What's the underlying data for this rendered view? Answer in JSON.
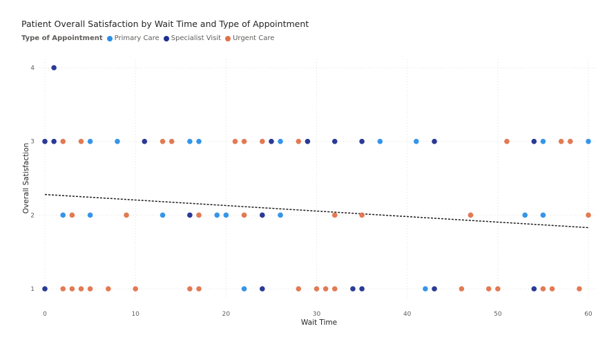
{
  "chart_data": {
    "type": "scatter",
    "title": "Patient Overall Satisfaction by Wait Time and Type of Appointment",
    "legend_title": "Type of Appointment",
    "xlabel": "Wait Time",
    "ylabel": "Overall Satisfaction",
    "xlim": [
      0,
      60
    ],
    "ylim": [
      1,
      4
    ],
    "x_ticks": [
      0,
      10,
      20,
      30,
      40,
      50,
      60
    ],
    "y_ticks": [
      1,
      2,
      3,
      4
    ],
    "grid": true,
    "legend_position": "top-left",
    "trendline": {
      "x": [
        0,
        60
      ],
      "y": [
        2.28,
        1.83
      ],
      "style": "dashed"
    },
    "series": [
      {
        "name": "Primary Care",
        "color": "#2b8fe8",
        "points": [
          [
            5,
            3
          ],
          [
            8,
            3
          ],
          [
            16,
            3
          ],
          [
            17,
            3
          ],
          [
            26,
            3
          ],
          [
            37,
            3
          ],
          [
            41,
            3
          ],
          [
            55,
            3
          ],
          [
            60,
            3
          ],
          [
            2,
            2
          ],
          [
            5,
            2
          ],
          [
            13,
            2
          ],
          [
            19,
            2
          ],
          [
            20,
            2
          ],
          [
            26,
            2
          ],
          [
            53,
            2
          ],
          [
            55,
            2
          ],
          [
            22,
            1
          ],
          [
            42,
            1
          ]
        ]
      },
      {
        "name": "Specialist Visit",
        "color": "#1f2f8f",
        "points": [
          [
            1,
            4
          ],
          [
            0,
            3
          ],
          [
            1,
            3
          ],
          [
            11,
            3
          ],
          [
            25,
            3
          ],
          [
            29,
            3
          ],
          [
            32,
            3
          ],
          [
            35,
            3
          ],
          [
            43,
            3
          ],
          [
            54,
            3
          ],
          [
            16,
            2
          ],
          [
            24,
            2
          ],
          [
            0,
            1
          ],
          [
            24,
            1
          ],
          [
            34,
            1
          ],
          [
            35,
            1
          ],
          [
            43,
            1
          ],
          [
            54,
            1
          ]
        ]
      },
      {
        "name": "Urgent Care",
        "color": "#e0734a",
        "points": [
          [
            2,
            3
          ],
          [
            4,
            3
          ],
          [
            13,
            3
          ],
          [
            14,
            3
          ],
          [
            21,
            3
          ],
          [
            22,
            3
          ],
          [
            24,
            3
          ],
          [
            28,
            3
          ],
          [
            51,
            3
          ],
          [
            57,
            3
          ],
          [
            58,
            3
          ],
          [
            3,
            2
          ],
          [
            9,
            2
          ],
          [
            17,
            2
          ],
          [
            22,
            2
          ],
          [
            32,
            2
          ],
          [
            35,
            2
          ],
          [
            47,
            2
          ],
          [
            60,
            2
          ],
          [
            2,
            1
          ],
          [
            3,
            1
          ],
          [
            4,
            1
          ],
          [
            5,
            1
          ],
          [
            7,
            1
          ],
          [
            10,
            1
          ],
          [
            16,
            1
          ],
          [
            17,
            1
          ],
          [
            28,
            1
          ],
          [
            30,
            1
          ],
          [
            31,
            1
          ],
          [
            32,
            1
          ],
          [
            46,
            1
          ],
          [
            49,
            1
          ],
          [
            50,
            1
          ],
          [
            55,
            1
          ],
          [
            56,
            1
          ],
          [
            59,
            1
          ]
        ]
      }
    ]
  }
}
